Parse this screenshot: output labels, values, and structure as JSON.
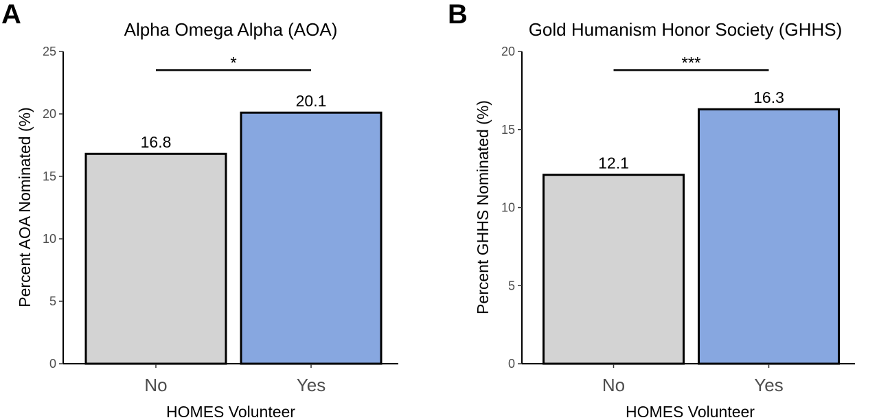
{
  "chart_data": [
    {
      "panel": "A",
      "type": "bar",
      "title": "Alpha Omega Alpha (AOA)",
      "xlabel": "HOMES Volunteer",
      "ylabel": "Percent AOA Nominated (%)",
      "categories": [
        "No",
        "Yes"
      ],
      "values": [
        16.8,
        20.1
      ],
      "value_labels": [
        "16.8",
        "20.1"
      ],
      "colors": [
        "#d3d3d3",
        "#87a7e0"
      ],
      "ylim": [
        0,
        25
      ],
      "yticks": [
        0,
        5,
        10,
        15,
        20,
        25
      ],
      "significance": {
        "label": "*",
        "from": "No",
        "to": "Yes",
        "y": 23.5
      },
      "grid": false
    },
    {
      "panel": "B",
      "type": "bar",
      "title": "Gold Humanism Honor Society (GHHS)",
      "xlabel": "HOMES Volunteer",
      "ylabel": "Percent GHHS Nominated (%)",
      "categories": [
        "No",
        "Yes"
      ],
      "values": [
        12.1,
        16.3
      ],
      "value_labels": [
        "12.1",
        "16.3"
      ],
      "colors": [
        "#d3d3d3",
        "#87a7e0"
      ],
      "ylim": [
        0,
        20
      ],
      "yticks": [
        0,
        5,
        10,
        15,
        20
      ],
      "significance": {
        "label": "***",
        "from": "No",
        "to": "Yes",
        "y": 18.8
      },
      "grid": false
    }
  ]
}
